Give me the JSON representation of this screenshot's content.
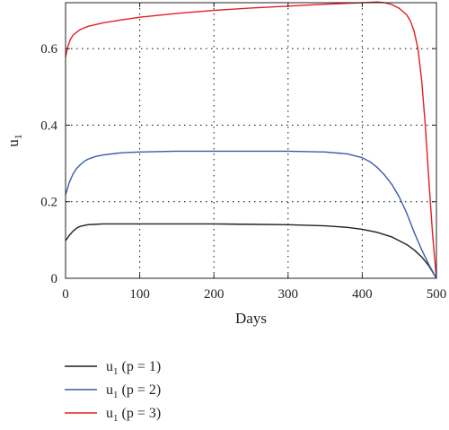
{
  "chart_data": {
    "type": "line",
    "xlabel": "Days",
    "ylabel": "u",
    "ylabel_sub": "1",
    "xlim": [
      0,
      500
    ],
    "ylim": [
      0,
      0.72
    ],
    "xticks": [
      0,
      100,
      200,
      300,
      400,
      500
    ],
    "yticks": [
      0,
      0.2,
      0.4,
      0.6
    ],
    "xtick_labels": [
      "0",
      "100",
      "200",
      "300",
      "400",
      "500"
    ],
    "ytick_labels": [
      "0",
      "0.2",
      "0.4",
      "0.6"
    ],
    "grid": true,
    "legend_position": "below",
    "series": [
      {
        "name": "u1 (p = 1)",
        "legend_base": "u",
        "legend_sub": "1",
        "legend_rest": "(p = 1)",
        "color": "#231f20",
        "x": [
          0,
          5,
          10,
          15,
          20,
          30,
          40,
          50,
          75,
          100,
          150,
          200,
          250,
          300,
          350,
          380,
          400,
          420,
          440,
          460,
          470,
          480,
          490,
          500
        ],
        "y": [
          0.098,
          0.112,
          0.123,
          0.131,
          0.136,
          0.14,
          0.141,
          0.142,
          0.142,
          0.142,
          0.142,
          0.142,
          0.141,
          0.14,
          0.137,
          0.133,
          0.128,
          0.12,
          0.108,
          0.088,
          0.074,
          0.056,
          0.032,
          0.0
        ]
      },
      {
        "name": "u1 (p = 2)",
        "legend_base": "u",
        "legend_sub": "1",
        "legend_rest": "(p = 2)",
        "color": "#3b5ba9",
        "x": [
          0,
          5,
          10,
          15,
          20,
          25,
          30,
          40,
          50,
          75,
          100,
          150,
          200,
          250,
          300,
          350,
          380,
          400,
          410,
          420,
          430,
          440,
          450,
          460,
          470,
          480,
          490,
          500
        ],
        "y": [
          0.218,
          0.25,
          0.272,
          0.287,
          0.297,
          0.305,
          0.311,
          0.318,
          0.322,
          0.328,
          0.33,
          0.332,
          0.332,
          0.332,
          0.332,
          0.33,
          0.325,
          0.315,
          0.305,
          0.29,
          0.27,
          0.245,
          0.212,
          0.17,
          0.12,
          0.075,
          0.035,
          0.0
        ]
      },
      {
        "name": "u1 (p = 3)",
        "legend_base": "u",
        "legend_sub": "1",
        "legend_rest": "(p = 3)",
        "color": "#e31e24",
        "x": [
          0,
          3,
          6,
          10,
          15,
          20,
          30,
          50,
          75,
          100,
          150,
          200,
          250,
          300,
          350,
          400,
          420,
          430,
          440,
          450,
          460,
          465,
          470,
          475,
          480,
          485,
          490,
          495,
          500
        ],
        "y": [
          0.578,
          0.605,
          0.622,
          0.635,
          0.643,
          0.65,
          0.658,
          0.667,
          0.675,
          0.682,
          0.692,
          0.7,
          0.706,
          0.711,
          0.716,
          0.72,
          0.722,
          0.72,
          0.715,
          0.705,
          0.688,
          0.672,
          0.645,
          0.6,
          0.52,
          0.4,
          0.25,
          0.11,
          0.0
        ]
      }
    ]
  }
}
